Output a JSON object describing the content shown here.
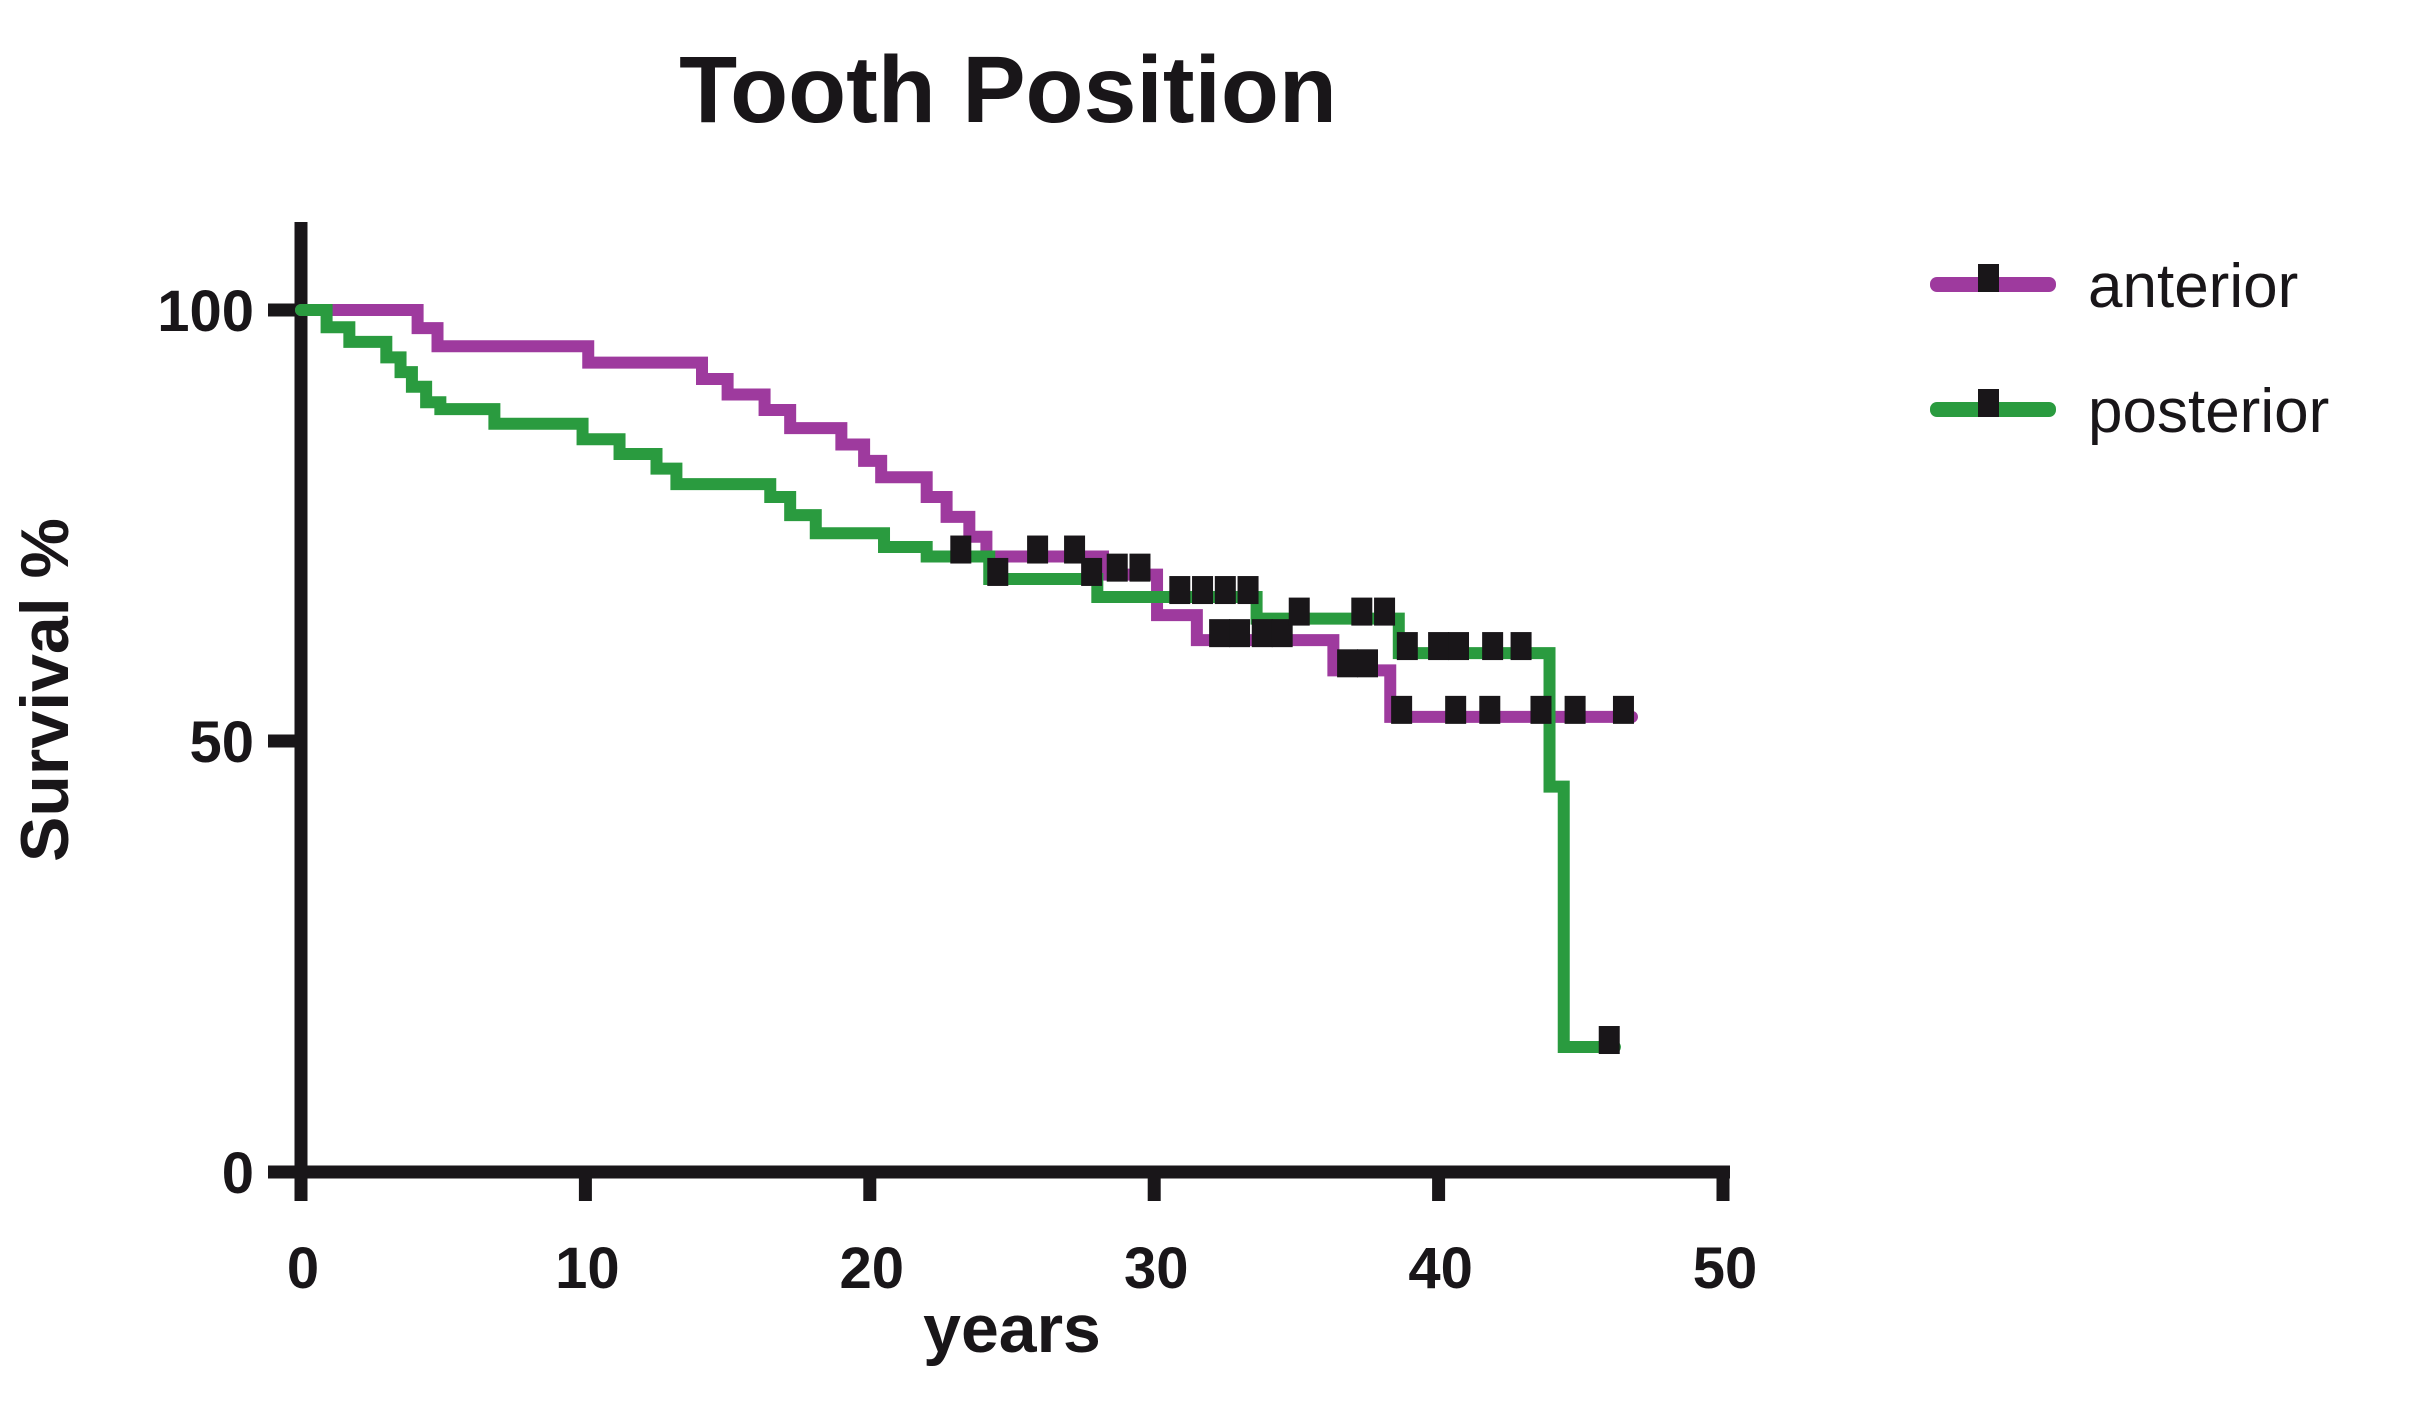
{
  "page": {
    "background": "#ffffff",
    "text_color": "#191619"
  },
  "chart_data": {
    "type": "line",
    "subtype": "kaplan-meier-step-survival",
    "title": "Tooth Position",
    "xlabel": "years",
    "ylabel": "Survival %",
    "xlim": [
      0,
      50
    ],
    "ylim": [
      0,
      100
    ],
    "x_ticks": [
      0,
      10,
      20,
      30,
      40,
      50
    ],
    "y_ticks": [
      0,
      50,
      100
    ],
    "grid": false,
    "legend_position": "right-outside",
    "axis_color": "#191619",
    "censor_marker": "black-square-tick",
    "censor_color": "#191619",
    "series": [
      {
        "name": "anterior",
        "color": "#9E3A9E",
        "steps": [
          [
            0,
            100
          ],
          [
            4.1,
            97.9
          ],
          [
            4.8,
            95.8
          ],
          [
            10.1,
            93.9
          ],
          [
            14.1,
            92.0
          ],
          [
            15.0,
            90.2
          ],
          [
            16.3,
            88.4
          ],
          [
            17.2,
            86.3
          ],
          [
            19.0,
            84.4
          ],
          [
            19.8,
            82.5
          ],
          [
            20.4,
            80.6
          ],
          [
            22.0,
            78.3
          ],
          [
            22.7,
            76.0
          ],
          [
            23.5,
            73.7
          ],
          [
            24.1,
            71.4
          ],
          [
            28.2,
            69.3
          ],
          [
            30.1,
            64.6
          ],
          [
            31.5,
            61.7
          ],
          [
            36.3,
            58.2
          ],
          [
            38.3,
            52.8
          ]
        ],
        "end_time": 46.8,
        "censor_ticks": [
          [
            25.9,
            71.4
          ],
          [
            27.2,
            71.4
          ],
          [
            28.7,
            69.3
          ],
          [
            29.5,
            69.3
          ],
          [
            32.3,
            61.7
          ],
          [
            33.0,
            61.7
          ],
          [
            33.8,
            61.7
          ],
          [
            34.5,
            61.7
          ],
          [
            36.8,
            58.2
          ],
          [
            37.5,
            58.2
          ],
          [
            38.7,
            52.8
          ],
          [
            40.6,
            52.8
          ],
          [
            41.8,
            52.8
          ],
          [
            43.6,
            52.8
          ],
          [
            44.8,
            52.8
          ],
          [
            46.5,
            52.8
          ]
        ]
      },
      {
        "name": "posterior",
        "color": "#2A9B3F",
        "steps": [
          [
            0,
            100
          ],
          [
            0.9,
            98.0
          ],
          [
            1.7,
            96.3
          ],
          [
            3.0,
            94.5
          ],
          [
            3.5,
            92.8
          ],
          [
            3.9,
            91.1
          ],
          [
            4.4,
            89.3
          ],
          [
            4.9,
            88.5
          ],
          [
            6.8,
            86.8
          ],
          [
            9.9,
            85.0
          ],
          [
            11.2,
            83.3
          ],
          [
            12.5,
            81.6
          ],
          [
            13.2,
            79.8
          ],
          [
            16.5,
            78.3
          ],
          [
            17.2,
            76.2
          ],
          [
            18.1,
            74.1
          ],
          [
            20.5,
            72.5
          ],
          [
            22.0,
            71.4
          ],
          [
            24.2,
            68.8
          ],
          [
            28.0,
            66.7
          ],
          [
            33.6,
            64.2
          ],
          [
            38.6,
            60.2
          ],
          [
            43.9,
            44.7
          ],
          [
            44.4,
            14.5
          ]
        ],
        "end_time": 46.2,
        "censor_ticks": [
          [
            23.2,
            71.4
          ],
          [
            24.5,
            68.8
          ],
          [
            27.8,
            68.8
          ],
          [
            30.9,
            66.7
          ],
          [
            31.7,
            66.7
          ],
          [
            32.5,
            66.7
          ],
          [
            33.3,
            66.7
          ],
          [
            35.1,
            64.2
          ],
          [
            37.3,
            64.2
          ],
          [
            38.1,
            64.2
          ],
          [
            38.9,
            60.2
          ],
          [
            40.0,
            60.2
          ],
          [
            40.7,
            60.2
          ],
          [
            41.9,
            60.2
          ],
          [
            42.9,
            60.2
          ],
          [
            46.0,
            14.5
          ]
        ]
      }
    ]
  }
}
